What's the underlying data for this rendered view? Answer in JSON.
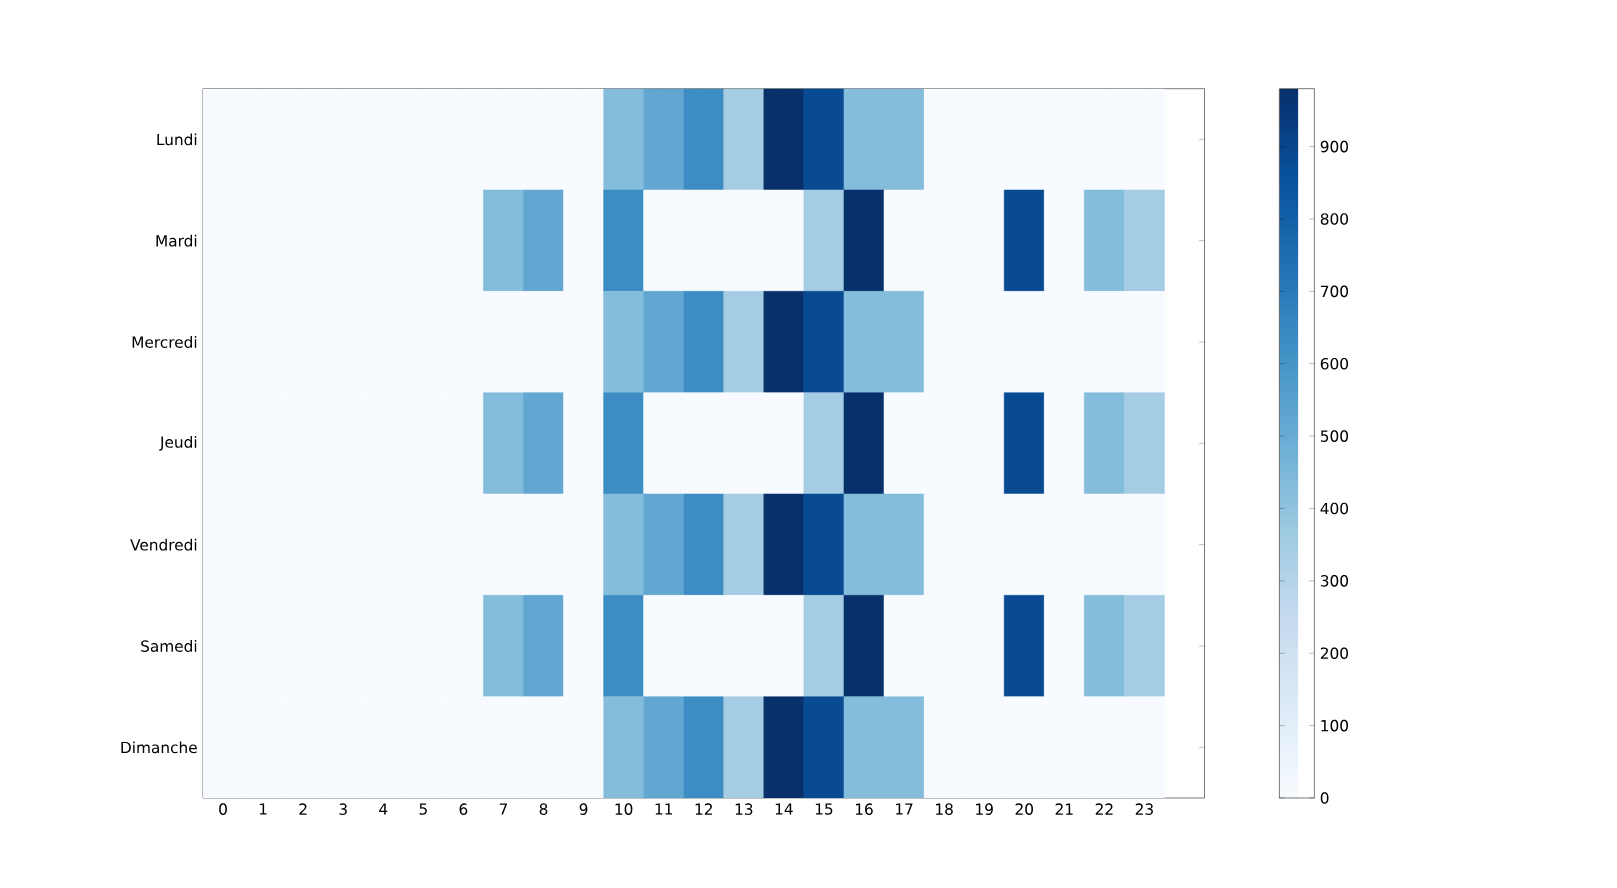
{
  "chart_data": {
    "type": "heatmap",
    "categories": [
      "0",
      "1",
      "2",
      "3",
      "4",
      "5",
      "6",
      "7",
      "8",
      "9",
      "10",
      "11",
      "12",
      "13",
      "14",
      "15",
      "16",
      "17",
      "18",
      "19",
      "20",
      "21",
      "22",
      "23"
    ],
    "y_categories": [
      "Lundi",
      "Mardi",
      "Mercredi",
      "Jeudi",
      "Vendredi",
      "Samedi",
      "Dimanche"
    ],
    "cells": [
      [
        0,
        0,
        0,
        0,
        0,
        0,
        0,
        0,
        0,
        0,
        430,
        520,
        630,
        350,
        980,
        880,
        430,
        430,
        0,
        0,
        0,
        0,
        0,
        0
      ],
      [
        0,
        0,
        0,
        0,
        0,
        0,
        0,
        430,
        520,
        0,
        630,
        0,
        0,
        0,
        0,
        350,
        980,
        0,
        0,
        0,
        880,
        0,
        430,
        350
      ],
      [
        0,
        0,
        0,
        0,
        0,
        0,
        0,
        0,
        0,
        0,
        430,
        520,
        630,
        350,
        980,
        880,
        430,
        430,
        0,
        0,
        0,
        0,
        0,
        0
      ],
      [
        0,
        0,
        0,
        0,
        0,
        0,
        0,
        430,
        520,
        0,
        630,
        0,
        0,
        0,
        0,
        350,
        980,
        0,
        0,
        0,
        880,
        0,
        430,
        350
      ],
      [
        0,
        0,
        0,
        0,
        0,
        0,
        0,
        0,
        0,
        0,
        430,
        520,
        630,
        350,
        980,
        880,
        430,
        430,
        0,
        0,
        0,
        0,
        0,
        0
      ],
      [
        0,
        0,
        0,
        0,
        0,
        0,
        0,
        430,
        520,
        0,
        630,
        0,
        0,
        0,
        0,
        350,
        980,
        0,
        0,
        0,
        880,
        0,
        430,
        350
      ],
      [
        0,
        0,
        0,
        0,
        0,
        0,
        0,
        0,
        0,
        0,
        430,
        520,
        630,
        350,
        980,
        880,
        430,
        430,
        0,
        0,
        0,
        0,
        0,
        0
      ]
    ],
    "clim": [
      0,
      980
    ],
    "cticks": [
      0,
      100,
      200,
      300,
      400,
      500,
      600,
      700,
      800,
      900
    ]
  }
}
